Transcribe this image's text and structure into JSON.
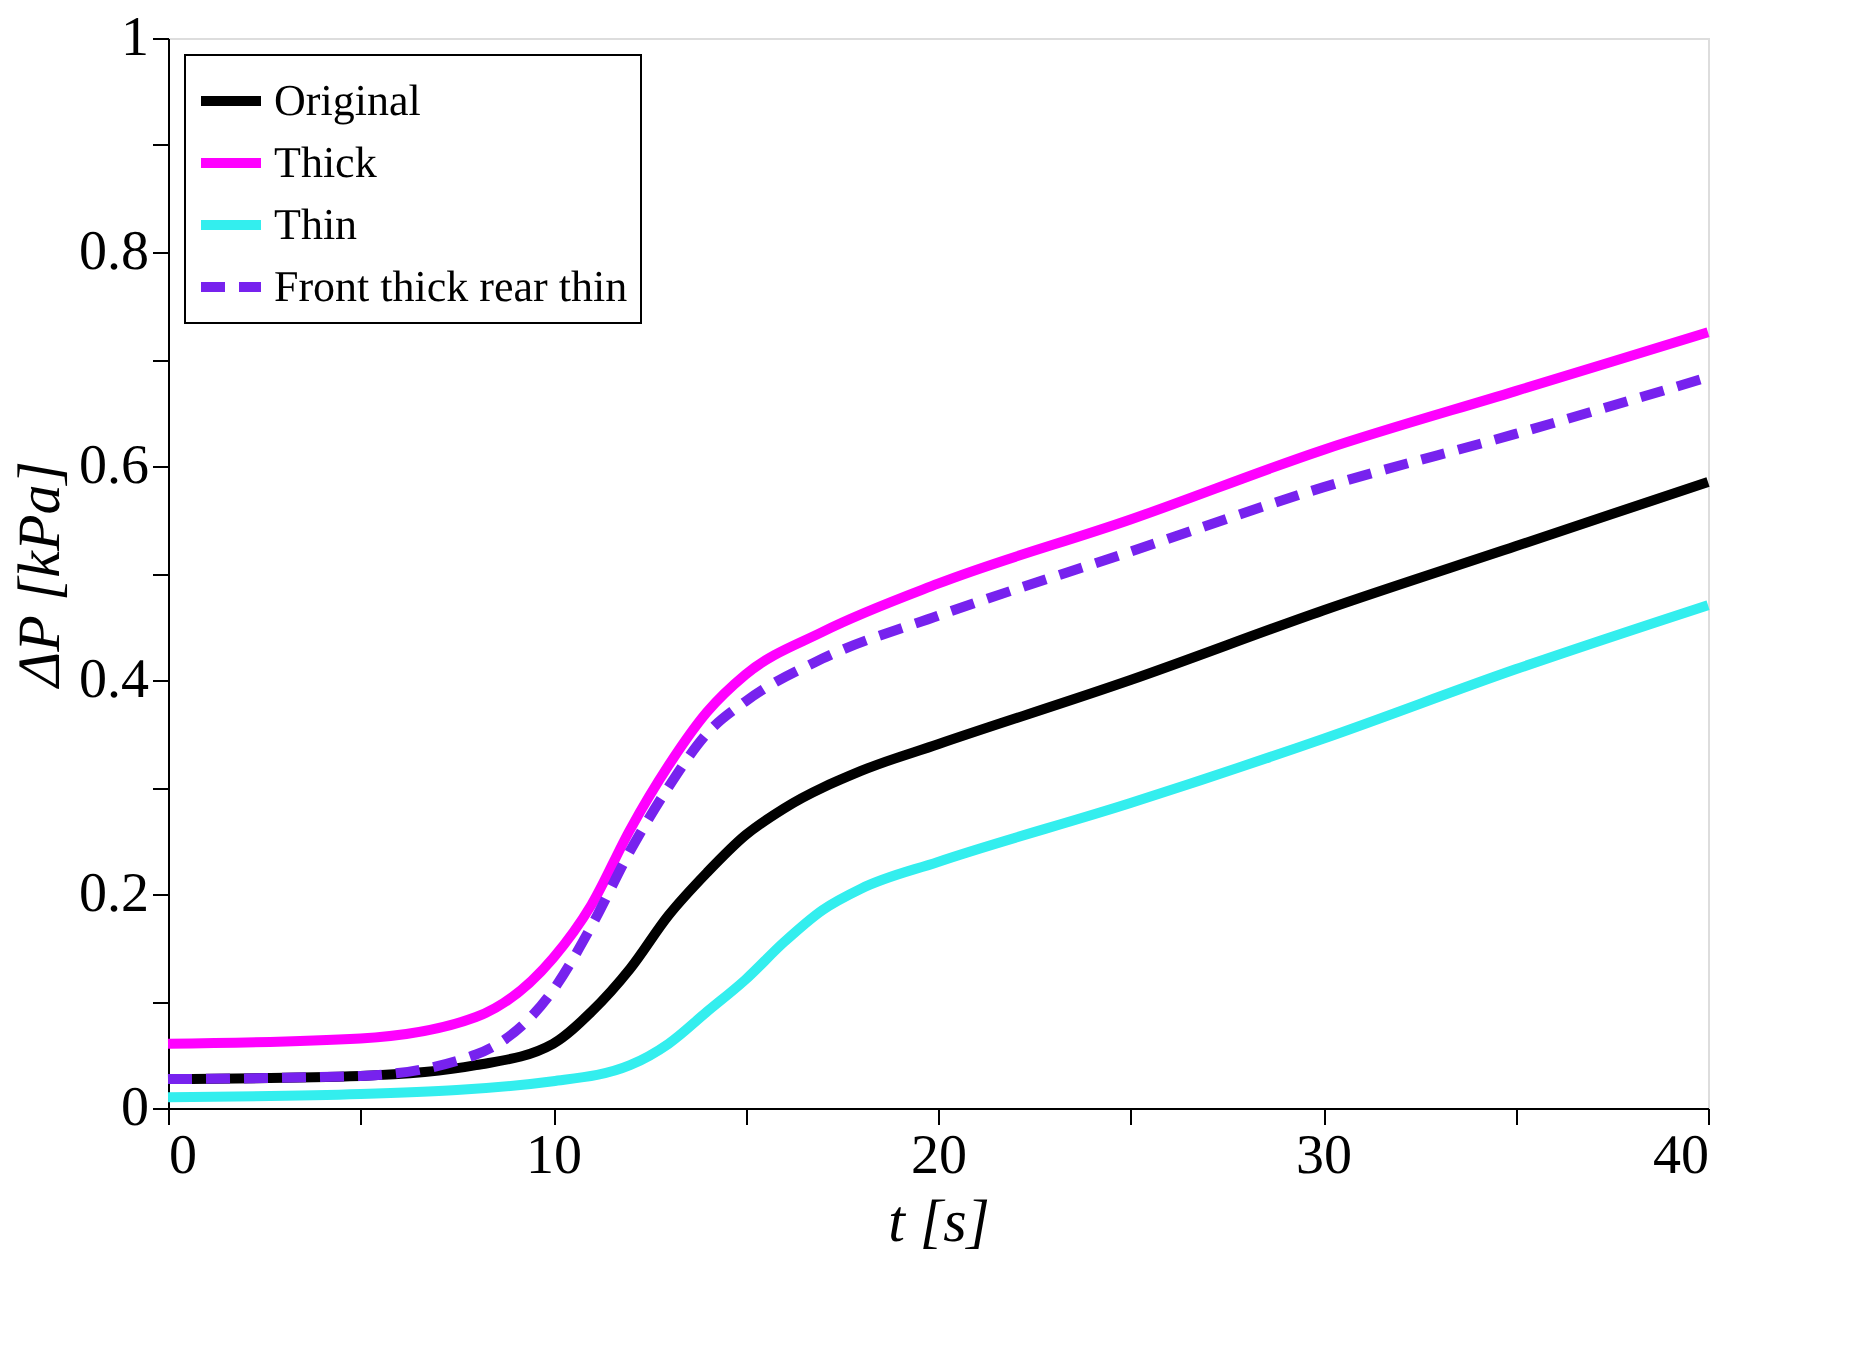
{
  "chart_data": {
    "type": "line",
    "xlabel": "t  [s]",
    "ylabel": "ΔP  [kPa]",
    "xlim": [
      0,
      40
    ],
    "ylim": [
      0,
      1
    ],
    "xticks": [
      0,
      {
        "value": 5,
        "label": null
      },
      10,
      {
        "value": 15,
        "label": null
      },
      20,
      {
        "value": 25,
        "label": null
      },
      30,
      {
        "value": 35,
        "label": null
      },
      40
    ],
    "yticks": [
      0,
      {
        "value": 0.1,
        "label": null
      },
      0.2,
      {
        "value": 0.3,
        "label": null
      },
      0.4,
      {
        "value": 0.5,
        "label": null
      },
      0.6,
      {
        "value": 0.7,
        "label": null
      },
      0.8,
      {
        "value": 0.9,
        "label": null
      },
      1
    ],
    "grid": false,
    "legend": "top left",
    "marker": "none",
    "series": [
      {
        "name": "Original",
        "color": "#000000",
        "line_style": "solid",
        "x": [
          0,
          5,
          8,
          10,
          11,
          12,
          13,
          14,
          15,
          16,
          18,
          20,
          25,
          30,
          35,
          40
        ],
        "values": [
          0.027,
          0.03,
          0.04,
          0.06,
          0.09,
          0.13,
          0.18,
          0.22,
          0.255,
          0.28,
          0.315,
          0.34,
          0.4,
          0.465,
          0.525,
          0.585
        ]
      },
      {
        "name": "Thick",
        "color": "#ff00ff",
        "line_style": "solid",
        "x": [
          0,
          5,
          8,
          10,
          11,
          12,
          13,
          14,
          15,
          17,
          20,
          25,
          30,
          35,
          40
        ],
        "values": [
          0.06,
          0.065,
          0.085,
          0.14,
          0.19,
          0.26,
          0.32,
          0.37,
          0.405,
          0.445,
          0.49,
          0.55,
          0.615,
          0.67,
          0.725
        ]
      },
      {
        "name": "Thin",
        "color": "#33eeee",
        "line_style": "solid",
        "x": [
          0,
          5,
          10,
          12,
          13,
          14,
          15,
          16,
          17,
          18,
          20,
          25,
          30,
          35,
          40
        ],
        "values": [
          0.01,
          0.013,
          0.025,
          0.04,
          0.06,
          0.09,
          0.12,
          0.155,
          0.185,
          0.205,
          0.23,
          0.285,
          0.345,
          0.41,
          0.47
        ]
      },
      {
        "name": "Front thick rear thin",
        "color": "#7722ee",
        "line_style": "dashed",
        "x": [
          0,
          5,
          8,
          10,
          11,
          12,
          13,
          14,
          15,
          17,
          20,
          25,
          30,
          35,
          40
        ],
        "values": [
          0.027,
          0.03,
          0.05,
          0.11,
          0.17,
          0.24,
          0.3,
          0.35,
          0.38,
          0.42,
          0.46,
          0.52,
          0.58,
          0.63,
          0.683
        ]
      }
    ]
  }
}
